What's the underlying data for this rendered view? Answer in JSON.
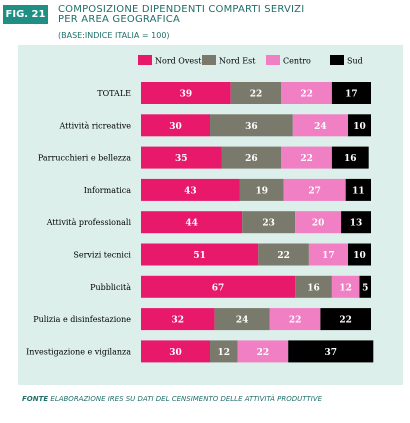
{
  "figure": {
    "tag": "FIG. 21",
    "title_line1": "COMPOSIZIONE DIPENDENTI COMPARTI SERVIZI",
    "title_line2": "PER AREA GEOGRAFICA",
    "subtitle": "(BASE:INDICE ITALIA = 100)",
    "source_label": "FONTE",
    "source_text": "ELABORAZIONE IRES SU DATI DEL CENSIMENTO DELLE ATTIVITÀ PRODUTTIVE"
  },
  "chart_data": {
    "type": "bar",
    "orientation": "horizontal",
    "stacked": true,
    "title": "COMPOSIZIONE DIPENDENTI COMPARTI SERVIZI PER AREA GEOGRAFICA",
    "xlim": [
      0,
      100
    ],
    "grid": false,
    "legend_position": "top",
    "categories": [
      "TOTALE",
      "Attività ricreative",
      "Parrucchieri e bellezza",
      "Informatica",
      "Attività professionali",
      "Servizi tecnici",
      "Pubblicità",
      "Pulizia e disinfestazione",
      "Investigazione e vigilanza"
    ],
    "series": [
      {
        "name": "Nord Ovest",
        "color": "#e8196b",
        "values": [
          39,
          30,
          35,
          43,
          44,
          51,
          67,
          32,
          30
        ]
      },
      {
        "name": "Nord Est",
        "color": "#7a7a6c",
        "values": [
          22,
          36,
          26,
          19,
          23,
          22,
          16,
          24,
          12
        ]
      },
      {
        "name": "Centro",
        "color": "#f07fc4",
        "values": [
          22,
          24,
          22,
          27,
          20,
          17,
          12,
          22,
          22
        ]
      },
      {
        "name": "Sud",
        "color": "#000000",
        "values": [
          17,
          10,
          16,
          11,
          13,
          10,
          5,
          22,
          37
        ]
      }
    ]
  }
}
